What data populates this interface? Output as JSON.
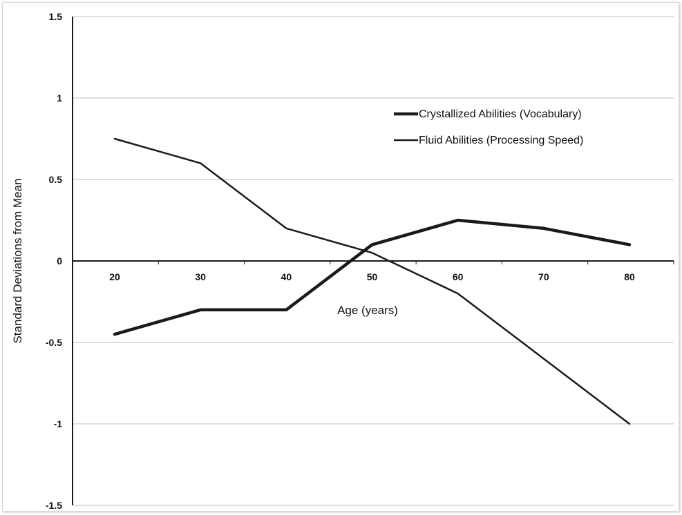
{
  "chart_data": {
    "type": "line",
    "x": [
      20,
      30,
      40,
      50,
      60,
      70,
      80
    ],
    "series": [
      {
        "name": "Crystallized Abilities (Vocabulary)",
        "values": [
          -0.45,
          -0.3,
          -0.3,
          0.1,
          0.25,
          0.2,
          0.1
        ]
      },
      {
        "name": "Fluid Abilities (Processing Speed)",
        "values": [
          0.75,
          0.6,
          0.2,
          0.05,
          -0.2,
          -0.6,
          -1.0
        ]
      }
    ],
    "xlabel": "Age (years)",
    "ylabel": "Standard Deviations from Mean",
    "ylim": [
      -1.5,
      1.5
    ],
    "yticks": [
      "1.5",
      "1",
      "0.5",
      "0",
      "-0.5",
      "-1",
      "-1.5"
    ],
    "xticks": [
      "20",
      "30",
      "40",
      "50",
      "60",
      "70",
      "80"
    ],
    "grid": true,
    "legend_position": "top-right",
    "colors": {
      "line": "#1a1a1a",
      "grid": "#bfbfbf",
      "axis": "#1a1a1a"
    }
  }
}
